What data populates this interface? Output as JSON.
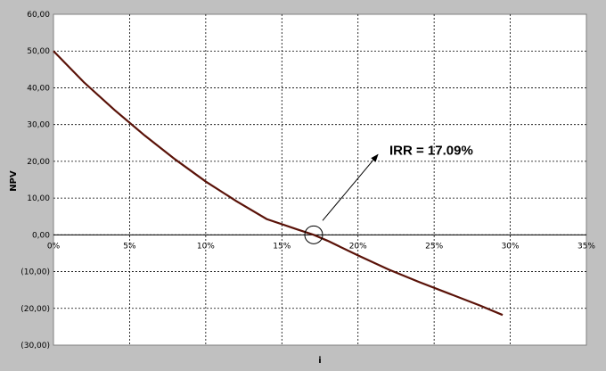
{
  "chart_data": {
    "type": "line",
    "title": "",
    "xlabel": "i",
    "ylabel": "NPV",
    "x_ticks": [
      "0%",
      "5%",
      "10%",
      "15%",
      "20%",
      "25%",
      "30%",
      "35%"
    ],
    "y_ticks": [
      "60,00",
      "50,00",
      "40,00",
      "30,00",
      "20,00",
      "10,00",
      "0,00",
      "(10,00)",
      "(20,00)",
      "(30,00)"
    ],
    "xlim": [
      0,
      0.35
    ],
    "ylim": [
      -30,
      60
    ],
    "grid": true,
    "series": [
      {
        "color": "#5a1208",
        "x": [
          0,
          0.02,
          0.04,
          0.06,
          0.08,
          0.1,
          0.12,
          0.14,
          0.16,
          0.1709,
          0.18,
          0.2,
          0.22,
          0.24,
          0.26,
          0.28,
          0.295
        ],
        "y": [
          50.0,
          41.5,
          34.0,
          27.0,
          20.5,
          14.5,
          9.2,
          4.3,
          1.5,
          0.0,
          -1.6,
          -5.6,
          -9.4,
          -12.8,
          -16.0,
          -19.2,
          -21.8
        ]
      }
    ],
    "annotation": {
      "text": "IRR = 17.09%",
      "x": 0.1709,
      "y": 0
    }
  }
}
